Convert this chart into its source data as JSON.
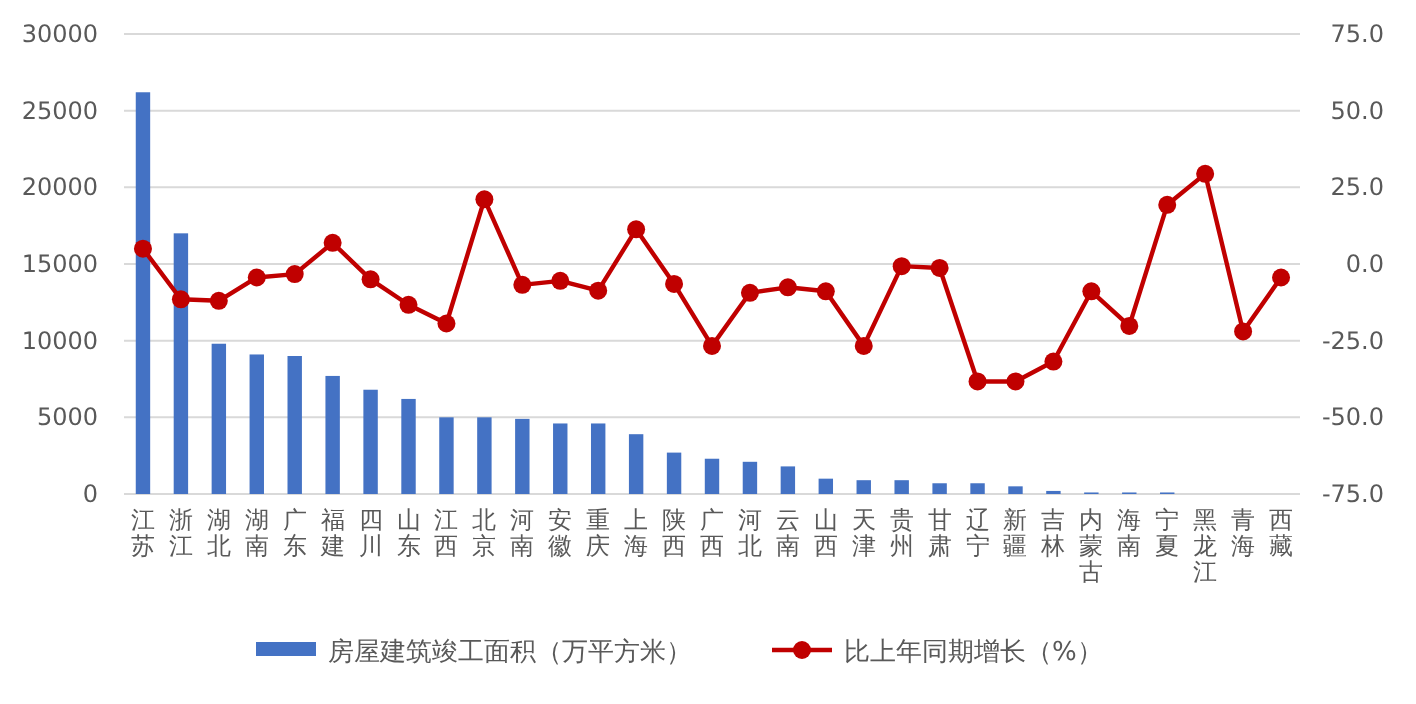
{
  "chart_data": {
    "type": "bar",
    "categories": [
      "江苏",
      "浙江",
      "湖北",
      "湖南",
      "广东",
      "福建",
      "四川",
      "山东",
      "江西",
      "北京",
      "河南",
      "安徽",
      "重庆",
      "上海",
      "陕西",
      "广西",
      "河北",
      "云南",
      "山西",
      "天津",
      "贵州",
      "甘肃",
      "辽宁",
      "新疆",
      "吉林",
      "内蒙古",
      "海南",
      "宁夏",
      "黑龙江",
      "青海",
      "西藏"
    ],
    "series": [
      {
        "name": "房屋建筑竣工面积（万平方米）",
        "color": "#4472c4",
        "values": [
          26200,
          17000,
          9800,
          9100,
          9000,
          7700,
          6800,
          6200,
          5000,
          5000,
          4900,
          4600,
          4600,
          3900,
          2700,
          2300,
          2100,
          1800,
          1000,
          900,
          900,
          700,
          700,
          500,
          200,
          100,
          100,
          100,
          0,
          0,
          0
        ]
      },
      {
        "name": "比上年同期增长（%）",
        "type": "line",
        "axis": "y2",
        "color": "#c00000",
        "marker": "circle",
        "line_style": "solid",
        "values": [
          5,
          -11.5,
          -12,
          -4.4,
          -3.3,
          6.9,
          -5,
          -13.3,
          -19.4,
          21.1,
          -6.8,
          -5.5,
          -8.7,
          11.3,
          -6.5,
          -26.7,
          -9.4,
          -7.6,
          -8.9,
          -26.7,
          -0.7,
          -1.3,
          -38.3,
          -38.3,
          -31.8,
          -8.9,
          -20.2,
          19.3,
          29.4,
          -22,
          -4.4
        ]
      }
    ],
    "ylim": [
      0,
      30000
    ],
    "yticks": [
      0,
      5000,
      10000,
      15000,
      20000,
      25000,
      30000
    ],
    "y2lim": [
      -75,
      75
    ],
    "y2ticks": [
      {
        "value": -75,
        "label": "-75.0"
      },
      {
        "value": -50,
        "label": "-50.0"
      },
      {
        "value": -25,
        "label": "-25.0"
      },
      {
        "value": 0,
        "label": "0.0"
      },
      {
        "value": 25,
        "label": "25.0"
      },
      {
        "value": 50,
        "label": "50.0"
      },
      {
        "value": 75,
        "label": "75.0"
      }
    ],
    "grid": "y",
    "legend": "bottom"
  }
}
